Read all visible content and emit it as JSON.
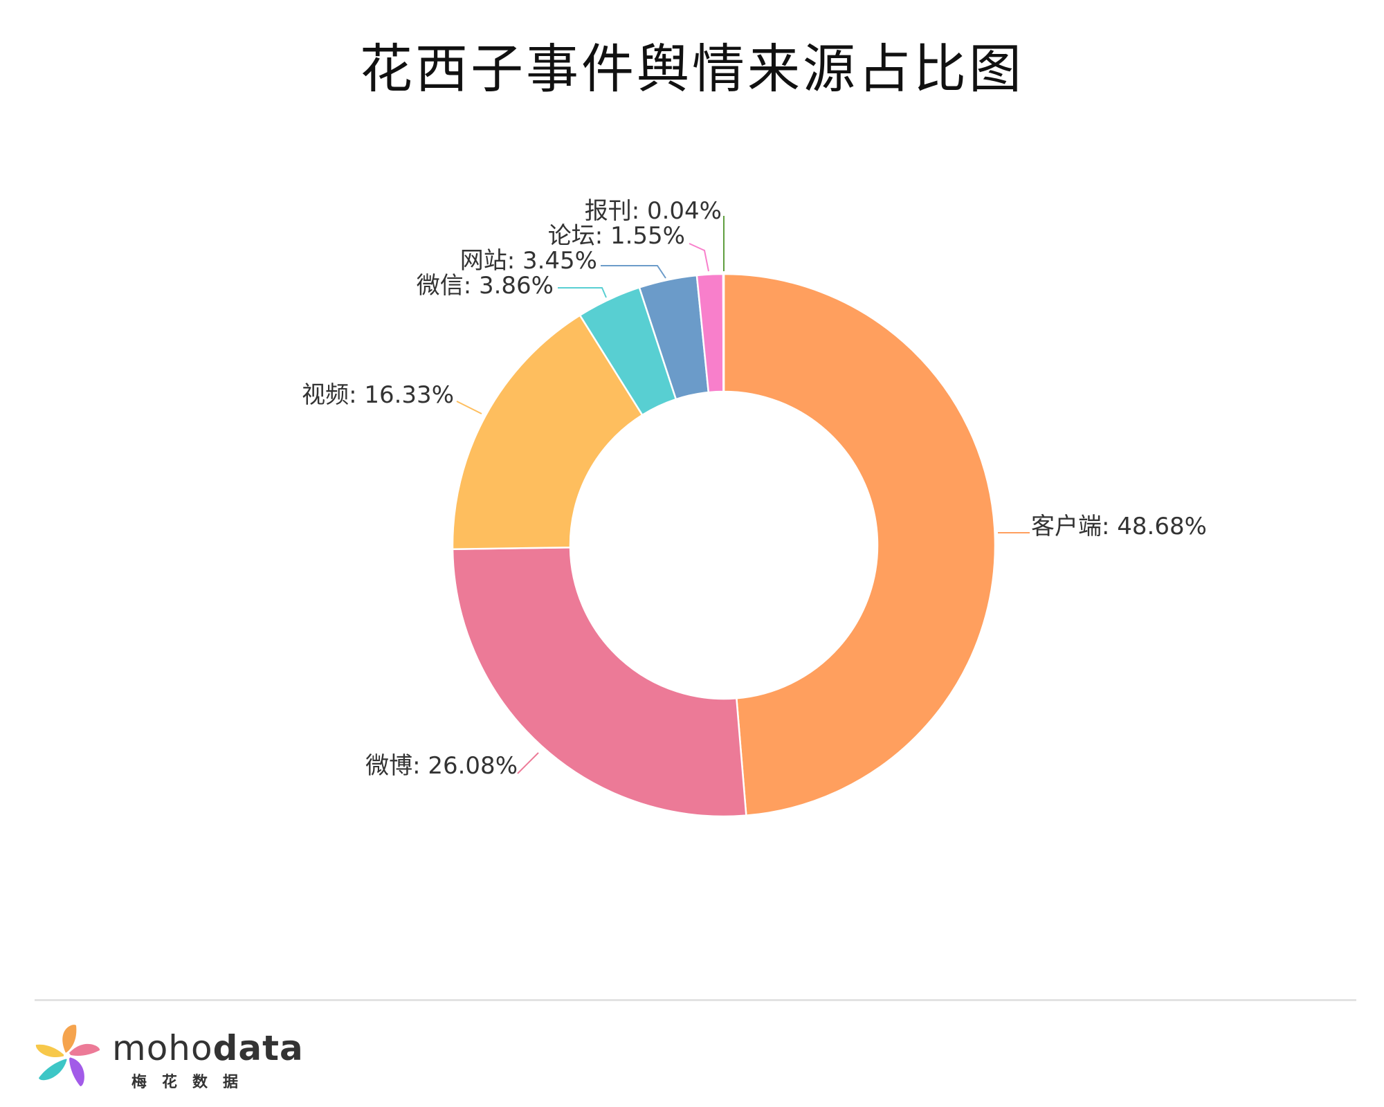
{
  "chart_data": {
    "type": "pie",
    "variant": "donut",
    "title": "花西子事件舆情来源占比图",
    "categories": [
      "客户端",
      "微博",
      "视频",
      "微信",
      "网站",
      "论坛",
      "报刊"
    ],
    "values": [
      48.68,
      26.08,
      16.33,
      3.86,
      3.45,
      1.55,
      0.04
    ],
    "labels": [
      "客户端: 48.68%",
      "微博: 26.08%",
      "视频: 16.33%",
      "微信: 3.86%",
      "网站: 3.45%",
      "论坛: 1.55%",
      "报刊: 0.04%"
    ],
    "colors": [
      "#FF9F5E",
      "#EC7A97",
      "#FEBE5E",
      "#58CFD2",
      "#6B9BC9",
      "#F87FCB",
      "#5F9E3E"
    ],
    "legend": "none"
  },
  "brand": {
    "name_light": "moho",
    "name_bold": "data",
    "sub": "梅花数据"
  }
}
